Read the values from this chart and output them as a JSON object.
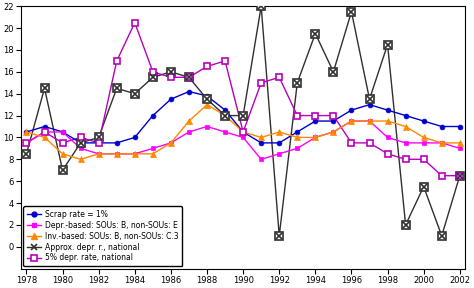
{
  "years": [
    1978,
    1979,
    1980,
    1981,
    1982,
    1983,
    1984,
    1985,
    1986,
    1987,
    1988,
    1989,
    1990,
    1991,
    1992,
    1993,
    1994,
    1995,
    1996,
    1997,
    1998,
    1999,
    2000,
    2001,
    2002
  ],
  "scrap_rate": [
    10.5,
    11.0,
    10.5,
    9.5,
    9.5,
    9.5,
    10.0,
    12.0,
    13.5,
    14.2,
    13.8,
    12.5,
    10.5,
    9.5,
    9.5,
    10.5,
    11.5,
    11.5,
    12.5,
    13.0,
    12.5,
    12.0,
    11.5,
    11.0,
    11.0
  ],
  "depr_based": [
    9.5,
    10.5,
    10.5,
    9.0,
    8.5,
    8.5,
    8.5,
    9.0,
    9.5,
    10.5,
    11.0,
    10.5,
    10.0,
    8.0,
    8.5,
    9.0,
    10.0,
    10.5,
    11.5,
    11.5,
    10.0,
    9.5,
    9.5,
    9.5,
    9.0
  ],
  "inv_based": [
    10.5,
    10.0,
    8.5,
    8.0,
    8.5,
    8.5,
    8.5,
    8.5,
    9.5,
    11.5,
    13.0,
    12.0,
    10.5,
    10.0,
    10.5,
    10.0,
    10.0,
    10.5,
    11.5,
    11.5,
    11.5,
    11.0,
    10.0,
    9.5,
    9.5
  ],
  "approx_depr": [
    8.5,
    14.5,
    7.0,
    9.5,
    10.0,
    14.5,
    14.0,
    15.5,
    16.0,
    15.5,
    13.5,
    12.0,
    12.0,
    22.0,
    1.0,
    15.0,
    19.5,
    16.0,
    21.5,
    13.5,
    18.5,
    2.0,
    5.5,
    1.0,
    6.5
  ],
  "depr_5pct": [
    9.5,
    10.5,
    9.5,
    10.0,
    9.5,
    17.0,
    20.5,
    16.0,
    15.5,
    15.5,
    16.5,
    17.0,
    10.5,
    15.0,
    15.5,
    12.0,
    12.0,
    12.0,
    9.5,
    9.5,
    8.5,
    8.0,
    8.0,
    6.5,
    6.5
  ],
  "scrap_color": "#0000cc",
  "depr_based_color": "#ff00ff",
  "inv_based_color": "#ff8800",
  "approx_depr_color": "#303030",
  "depr_5pct_color": "#bb00bb",
  "ylim": [
    -2,
    22
  ],
  "xlim": [
    1978,
    2002
  ],
  "yticks": [
    0,
    2,
    4,
    6,
    8,
    10,
    12,
    14,
    16,
    18,
    20,
    22
  ],
  "xticks": [
    1978,
    1980,
    1982,
    1984,
    1986,
    1988,
    1990,
    1992,
    1994,
    1996,
    1998,
    2000,
    2002
  ],
  "legend_labels": [
    "Scrap rate = 1%",
    "Depr.-based: SOUs: B, non-SOUs: E",
    "Inv.-based: SOUs: B, non-SOUs: C.3",
    "Approx. depr. r., national",
    "5% depr. rate, national"
  ],
  "figsize": [
    4.74,
    2.88
  ],
  "dpi": 100
}
